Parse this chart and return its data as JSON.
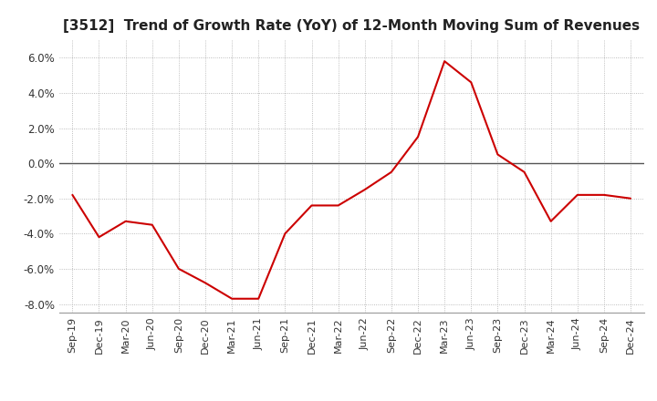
{
  "title": "[3512]  Trend of Growth Rate (YoY) of 12-Month Moving Sum of Revenues",
  "line_color": "#CC0000",
  "background_color": "#FFFFFF",
  "plot_bg_color": "#FFFFFF",
  "grid_color": "#AAAAAA",
  "zero_line_color": "#555555",
  "ylim": [
    -0.085,
    0.07
  ],
  "yticks": [
    -0.08,
    -0.06,
    -0.04,
    -0.02,
    0.0,
    0.02,
    0.04,
    0.06
  ],
  "x_labels": [
    "Sep-19",
    "Dec-19",
    "Mar-20",
    "Jun-20",
    "Sep-20",
    "Dec-20",
    "Mar-21",
    "Jun-21",
    "Sep-21",
    "Dec-21",
    "Mar-22",
    "Jun-22",
    "Sep-22",
    "Dec-22",
    "Mar-23",
    "Jun-23",
    "Sep-23",
    "Dec-23",
    "Mar-24",
    "Jun-24",
    "Sep-24",
    "Dec-24"
  ],
  "values": [
    -0.018,
    -0.042,
    -0.033,
    -0.035,
    -0.06,
    -0.068,
    -0.077,
    -0.077,
    -0.04,
    -0.024,
    -0.024,
    -0.015,
    -0.005,
    0.015,
    0.058,
    0.046,
    0.005,
    -0.005,
    -0.033,
    -0.018,
    -0.018,
    -0.02
  ],
  "figsize": [
    7.2,
    4.4
  ],
  "dpi": 100
}
